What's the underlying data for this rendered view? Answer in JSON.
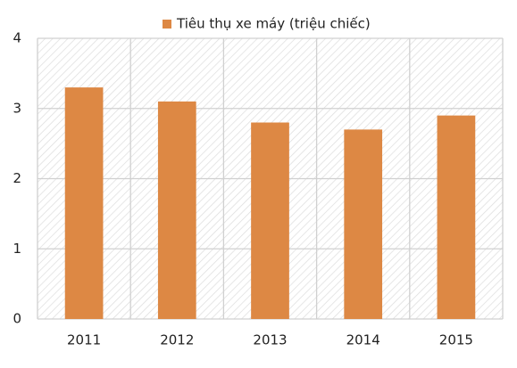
{
  "chart_data": {
    "type": "bar",
    "categories": [
      "2011",
      "2012",
      "2013",
      "2014",
      "2015"
    ],
    "series": [
      {
        "name": "Tiêu thụ xe máy (triệu chiếc)",
        "color": "#dd8844",
        "values": [
          3.3,
          3.1,
          2.8,
          2.7,
          2.9
        ]
      }
    ],
    "ylim": [
      0,
      4
    ],
    "yticks": [
      0,
      1,
      2,
      3,
      4
    ],
    "grid": true,
    "legend": "top"
  }
}
